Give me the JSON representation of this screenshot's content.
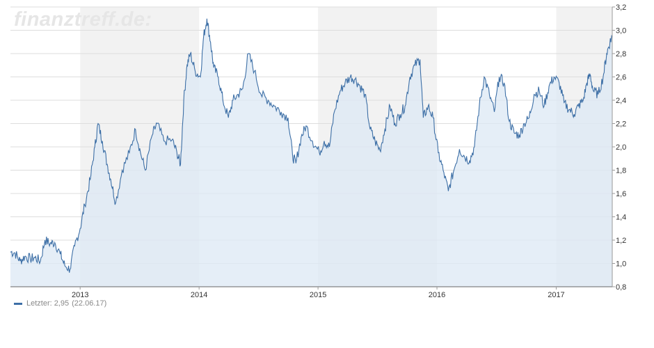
{
  "watermark": "finanztreff.de:",
  "legend": {
    "label": "Letzter:",
    "value": "2,95",
    "date": "22.06.17"
  },
  "colors": {
    "line": "#3d6fa6",
    "fill": "#dce8f4",
    "band": "#f2f2f2",
    "grid": "#dddddd"
  },
  "chart_data": {
    "type": "area",
    "title": "",
    "xlabel": "",
    "ylabel": "",
    "x_range": [
      "2012-06-01",
      "2017-06-22"
    ],
    "ylim": [
      0.8,
      3.2
    ],
    "y_ticks": [
      "0,8",
      "1,0",
      "1,2",
      "1,4",
      "1,6",
      "1,8",
      "2,0",
      "2,2",
      "2,4",
      "2,6",
      "2,8",
      "3,0",
      "3,2"
    ],
    "x_ticks": [
      "2013",
      "2014",
      "2015",
      "2016",
      "2017"
    ],
    "grid": true,
    "legend_position": "bottom-left",
    "series": [
      {
        "name": "Letzter",
        "points": [
          [
            "2012-06-01",
            1.1
          ],
          [
            "2012-06-15",
            1.09
          ],
          [
            "2012-07-01",
            1.02
          ],
          [
            "2012-07-15",
            1.06
          ],
          [
            "2012-08-01",
            1.04
          ],
          [
            "2012-08-15",
            1.05
          ],
          [
            "2012-09-01",
            1.02
          ],
          [
            "2012-09-15",
            1.2
          ],
          [
            "2012-10-01",
            1.17
          ],
          [
            "2012-10-15",
            1.18
          ],
          [
            "2012-11-01",
            1.08
          ],
          [
            "2012-11-15",
            0.98
          ],
          [
            "2012-12-01",
            0.95
          ],
          [
            "2012-12-15",
            1.15
          ],
          [
            "2013-01-01",
            1.3
          ],
          [
            "2013-01-15",
            1.5
          ],
          [
            "2013-02-01",
            1.72
          ],
          [
            "2013-02-15",
            2.0
          ],
          [
            "2013-02-25",
            2.2
          ],
          [
            "2013-03-10",
            2.05
          ],
          [
            "2013-03-25",
            1.85
          ],
          [
            "2013-04-05",
            1.72
          ],
          [
            "2013-04-20",
            1.52
          ],
          [
            "2013-05-10",
            1.8
          ],
          [
            "2013-06-01",
            1.95
          ],
          [
            "2013-06-20",
            2.15
          ],
          [
            "2013-07-05",
            1.95
          ],
          [
            "2013-07-20",
            1.8
          ],
          [
            "2013-08-10",
            2.1
          ],
          [
            "2013-08-25",
            2.2
          ],
          [
            "2013-09-15",
            2.05
          ],
          [
            "2013-10-10",
            2.06
          ],
          [
            "2013-10-25",
            1.95
          ],
          [
            "2013-11-05",
            1.85
          ],
          [
            "2013-11-15",
            2.4
          ],
          [
            "2013-11-25",
            2.7
          ],
          [
            "2013-12-05",
            2.8
          ],
          [
            "2013-12-20",
            2.65
          ],
          [
            "2014-01-05",
            2.6
          ],
          [
            "2014-01-15",
            2.95
          ],
          [
            "2014-01-25",
            3.1
          ],
          [
            "2014-02-05",
            2.9
          ],
          [
            "2014-02-15",
            2.68
          ],
          [
            "2014-03-01",
            2.6
          ],
          [
            "2014-03-15",
            2.4
          ],
          [
            "2014-04-01",
            2.25
          ],
          [
            "2014-04-15",
            2.4
          ],
          [
            "2014-05-01",
            2.45
          ],
          [
            "2014-05-15",
            2.5
          ],
          [
            "2014-06-01",
            2.8
          ],
          [
            "2014-06-20",
            2.65
          ],
          [
            "2014-07-10",
            2.45
          ],
          [
            "2014-08-01",
            2.4
          ],
          [
            "2014-08-20",
            2.35
          ],
          [
            "2014-09-10",
            2.3
          ],
          [
            "2014-10-01",
            2.25
          ],
          [
            "2014-10-15",
            1.92
          ],
          [
            "2014-10-25",
            1.86
          ],
          [
            "2014-11-10",
            2.08
          ],
          [
            "2014-11-25",
            2.18
          ],
          [
            "2014-12-15",
            2.05
          ],
          [
            "2015-01-05",
            1.95
          ],
          [
            "2015-01-20",
            2.05
          ],
          [
            "2015-02-05",
            2.0
          ],
          [
            "2015-02-20",
            2.3
          ],
          [
            "2015-03-10",
            2.48
          ],
          [
            "2015-03-25",
            2.55
          ],
          [
            "2015-04-10",
            2.6
          ],
          [
            "2015-04-25",
            2.58
          ],
          [
            "2015-05-10",
            2.52
          ],
          [
            "2015-05-25",
            2.45
          ],
          [
            "2015-06-10",
            2.15
          ],
          [
            "2015-06-25",
            2.05
          ],
          [
            "2015-07-10",
            1.97
          ],
          [
            "2015-07-25",
            2.15
          ],
          [
            "2015-08-10",
            2.35
          ],
          [
            "2015-08-25",
            2.2
          ],
          [
            "2015-09-10",
            2.28
          ],
          [
            "2015-09-25",
            2.35
          ],
          [
            "2015-10-10",
            2.6
          ],
          [
            "2015-10-25",
            2.7
          ],
          [
            "2015-11-10",
            2.75
          ],
          [
            "2015-11-20",
            2.25
          ],
          [
            "2015-12-05",
            2.35
          ],
          [
            "2015-12-20",
            2.25
          ],
          [
            "2016-01-05",
            1.95
          ],
          [
            "2016-01-20",
            1.8
          ],
          [
            "2016-02-05",
            1.62
          ],
          [
            "2016-02-20",
            1.78
          ],
          [
            "2016-03-10",
            1.98
          ],
          [
            "2016-03-25",
            1.92
          ],
          [
            "2016-04-10",
            1.88
          ],
          [
            "2016-04-25",
            2.0
          ],
          [
            "2016-05-10",
            2.35
          ],
          [
            "2016-05-25",
            2.6
          ],
          [
            "2016-06-10",
            2.45
          ],
          [
            "2016-06-25",
            2.3
          ],
          [
            "2016-07-10",
            2.6
          ],
          [
            "2016-07-25",
            2.55
          ],
          [
            "2016-08-10",
            2.22
          ],
          [
            "2016-08-25",
            2.12
          ],
          [
            "2016-09-10",
            2.1
          ],
          [
            "2016-09-25",
            2.2
          ],
          [
            "2016-10-10",
            2.25
          ],
          [
            "2016-10-25",
            2.45
          ],
          [
            "2016-11-10",
            2.48
          ],
          [
            "2016-11-25",
            2.35
          ],
          [
            "2016-12-10",
            2.52
          ],
          [
            "2016-12-25",
            2.6
          ],
          [
            "2017-01-10",
            2.55
          ],
          [
            "2017-01-25",
            2.38
          ],
          [
            "2017-02-10",
            2.32
          ],
          [
            "2017-02-25",
            2.28
          ],
          [
            "2017-03-10",
            2.35
          ],
          [
            "2017-03-25",
            2.4
          ],
          [
            "2017-04-05",
            2.55
          ],
          [
            "2017-04-15",
            2.62
          ],
          [
            "2017-04-25",
            2.48
          ],
          [
            "2017-05-10",
            2.45
          ],
          [
            "2017-05-25",
            2.6
          ],
          [
            "2017-06-05",
            2.8
          ],
          [
            "2017-06-15",
            2.9
          ],
          [
            "2017-06-22",
            2.95
          ]
        ]
      }
    ]
  }
}
